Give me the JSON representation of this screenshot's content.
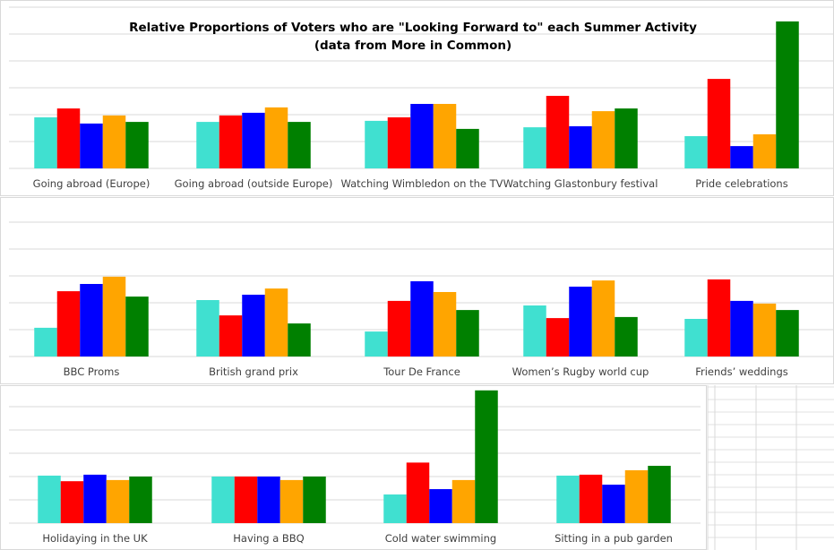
{
  "chart_data": [
    {
      "type": "bar",
      "title": "Relative Proportions of Voters who are \"Looking Forward to\" each Summer Activity",
      "subtitle": "(data from More in Common)",
      "categories": [
        "Going abroad (Europe)",
        "Going abroad (outside Europe)",
        "Watching Wimbledon on the TV",
        "Watching Glastonbury festival",
        "Pride celebrations"
      ],
      "colors": [
        "#40E0D0",
        "#FF0000",
        "#0000FF",
        "#FFA500",
        "#008000"
      ],
      "values": [
        [
          1.9,
          2.23,
          1.67,
          1.97,
          1.73
        ],
        [
          1.73,
          1.97,
          2.07,
          2.27,
          1.73
        ],
        [
          1.77,
          1.9,
          2.4,
          2.4,
          1.47
        ],
        [
          1.53,
          2.7,
          1.57,
          2.13,
          2.23
        ],
        [
          1.2,
          3.33,
          0.83,
          1.27,
          5.47
        ]
      ],
      "ylim": [
        0,
        6
      ],
      "grid": true
    },
    {
      "type": "bar",
      "categories": [
        "BBC Proms",
        "British grand prix",
        "Tour De France",
        "Women’s Rugby world cup",
        "Friends’ weddings"
      ],
      "colors": [
        "#40E0D0",
        "#FF0000",
        "#0000FF",
        "#FFA500",
        "#008000"
      ],
      "values": [
        [
          1.07,
          2.43,
          2.7,
          2.97,
          2.23
        ],
        [
          2.1,
          1.53,
          2.3,
          2.53,
          1.23
        ],
        [
          0.93,
          2.07,
          2.8,
          2.4,
          1.73
        ],
        [
          1.9,
          1.43,
          2.6,
          2.83,
          1.47
        ],
        [
          1.4,
          2.87,
          2.07,
          1.97,
          1.73
        ]
      ],
      "ylim": [
        0,
        6
      ],
      "grid": true
    },
    {
      "type": "bar",
      "categories": [
        "Holidaying in the UK",
        "Having a BBQ",
        "Cold water swimming",
        "Sitting in a pub garden"
      ],
      "colors": [
        "#40E0D0",
        "#FF0000",
        "#0000FF",
        "#FFA500",
        "#008000"
      ],
      "values": [
        [
          2.04,
          1.8,
          2.08,
          1.85,
          2.0
        ],
        [
          2.0,
          2.0,
          2.0,
          1.85,
          2.0
        ],
        [
          1.23,
          2.6,
          1.46,
          1.85,
          5.7
        ],
        [
          2.04,
          2.08,
          1.65,
          2.27,
          2.46
        ]
      ],
      "ylim": [
        0,
        6
      ],
      "grid": true
    }
  ]
}
